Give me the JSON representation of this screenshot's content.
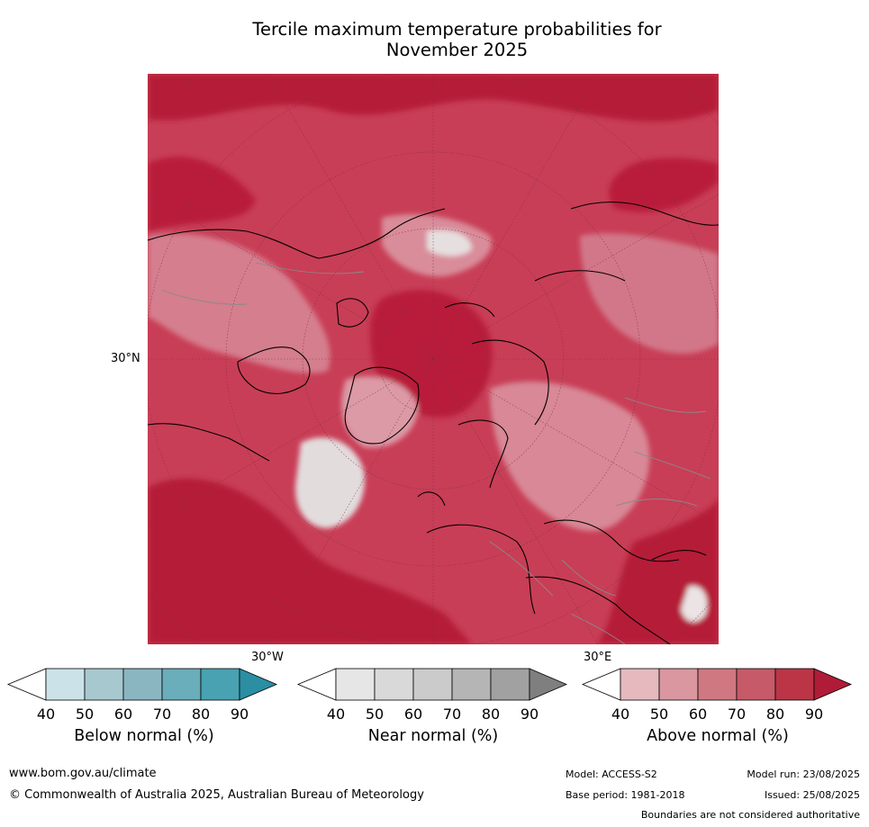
{
  "title_line1": "Tercile maximum temperature probabilities for",
  "title_line2": "November 2025",
  "map": {
    "lat_label": "30°N",
    "lon_label_west": "30°W",
    "lon_label_east": "30°E"
  },
  "colorbars": [
    {
      "title": "Below normal (%)",
      "ticks": [
        "40",
        "50",
        "60",
        "70",
        "80",
        "90"
      ],
      "colors": [
        "#ffffff",
        "#cbe3e8",
        "#a7c8cf",
        "#8ab6c2",
        "#6aadbb",
        "#48a2b2",
        "#2b8ea3"
      ]
    },
    {
      "title": "Near normal (%)",
      "ticks": [
        "40",
        "50",
        "60",
        "70",
        "80",
        "90"
      ],
      "colors": [
        "#ffffff",
        "#e6e6e6",
        "#d9d9d9",
        "#cbcbcb",
        "#b5b5b5",
        "#a1a1a1",
        "#7f7f7f"
      ]
    },
    {
      "title": "Above normal (%)",
      "ticks": [
        "40",
        "50",
        "60",
        "70",
        "80",
        "90"
      ],
      "colors": [
        "#ffffff",
        "#e5b9be",
        "#da97a0",
        "#cf7882",
        "#c65a68",
        "#bb3547",
        "#b01c37"
      ]
    }
  ],
  "footer": {
    "website": "www.bom.gov.au/climate",
    "copyright": "© Commonwealth of Australia 2025, Australian Bureau of Meteorology",
    "model": "Model: ACCESS-S2",
    "base_period": "Base period: 1981-2018",
    "model_run": "Model run: 23/08/2025",
    "issued": "Issued: 25/08/2025",
    "disclaimer": "Boundaries are not considered authoritative"
  }
}
